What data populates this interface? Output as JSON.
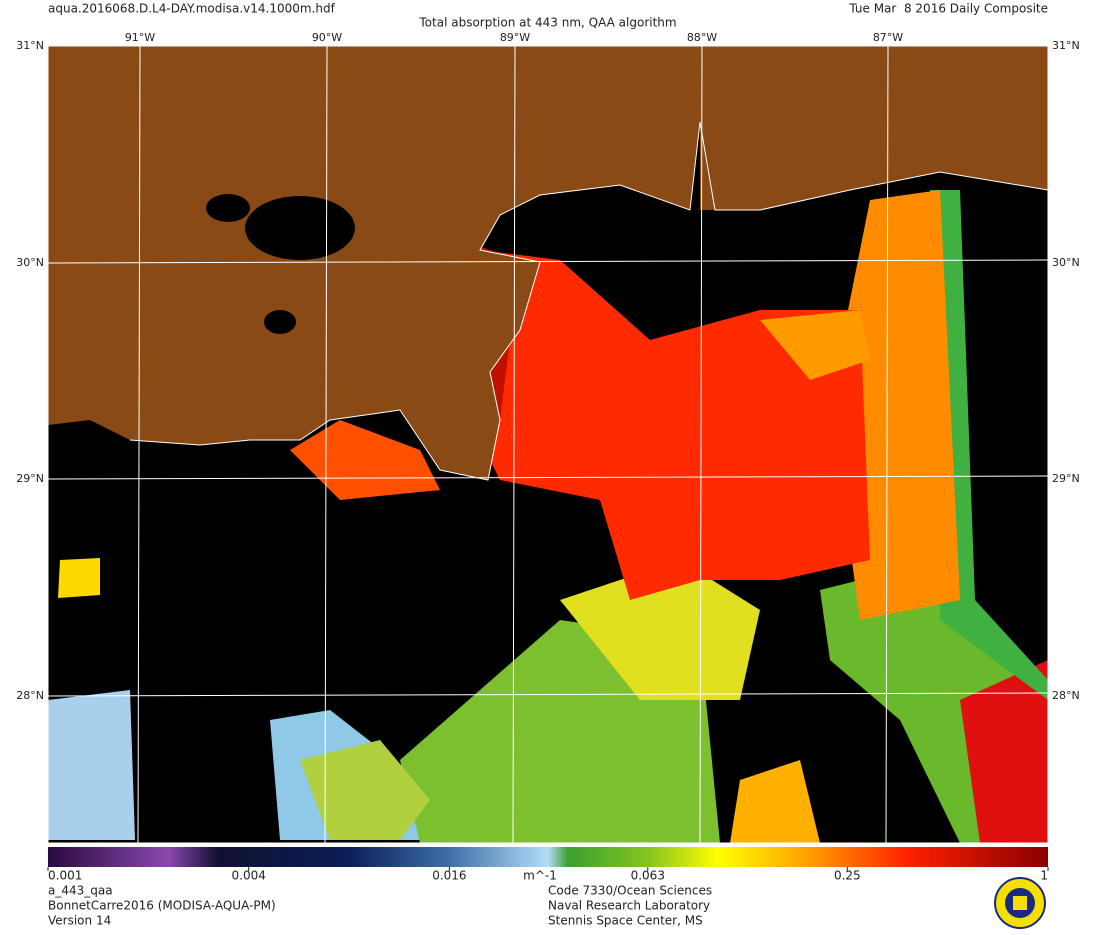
{
  "header": {
    "file": "aqua.2016068.D.L4-DAY.modisa.v14.1000m.hdf",
    "title": "Total absorption at 443 nm, QAA algorithm",
    "date": "Tue Mar  8 2016 Daily Composite"
  },
  "map": {
    "longitudes": [
      "91°W",
      "90°W",
      "89°W",
      "88°W",
      "87°W"
    ],
    "latitudes": [
      "31°N",
      "30°N",
      "29°N",
      "28°N"
    ]
  },
  "colorbar": {
    "scale": "log",
    "range": [
      0.001,
      1
    ],
    "ticks": [
      0.001,
      0.004,
      0.016,
      0.063,
      0.25,
      1
    ],
    "unit": "m^-1"
  },
  "footer": {
    "left": [
      "a_443_qaa",
      "BonnetCarre2016 (MODISA-AQUA-PM)",
      "Version 14"
    ],
    "center": [
      "Code 7330/Ocean Sciences",
      "Naval Research Laboratory",
      "Stennis Space Center, MS"
    ]
  }
}
